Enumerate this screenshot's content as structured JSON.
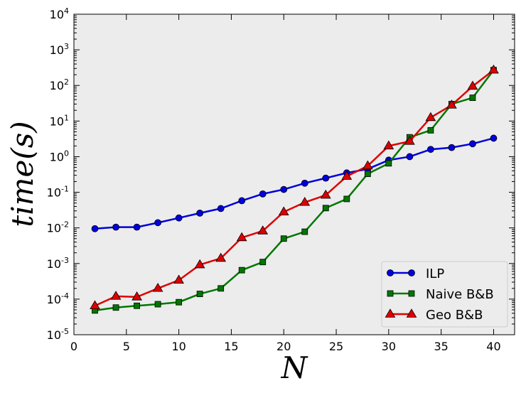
{
  "chart_data": {
    "type": "line",
    "title": "",
    "xlabel": "N",
    "ylabel": "time(s)",
    "xlim": [
      0,
      42
    ],
    "ylim_log10": [
      -5,
      4
    ],
    "yscale": "log",
    "grid": false,
    "legend_position": "lower-right",
    "x_ticks": [
      0,
      5,
      10,
      15,
      20,
      25,
      30,
      35,
      40
    ],
    "y_ticks": [
      {
        "base": "10",
        "exp": "-5"
      },
      {
        "base": "10",
        "exp": "-4"
      },
      {
        "base": "10",
        "exp": "-3"
      },
      {
        "base": "10",
        "exp": "-2"
      },
      {
        "base": "10",
        "exp": "-1"
      },
      {
        "base": "10",
        "exp": "0"
      },
      {
        "base": "10",
        "exp": "1"
      },
      {
        "base": "10",
        "exp": "2"
      },
      {
        "base": "10",
        "exp": "3"
      },
      {
        "base": "10",
        "exp": "4"
      }
    ],
    "x": [
      2,
      4,
      6,
      8,
      10,
      12,
      14,
      16,
      18,
      20,
      22,
      24,
      26,
      28,
      30,
      32,
      34,
      36,
      38,
      40
    ],
    "series": [
      {
        "name": "ILP",
        "color": "#0000dd",
        "marker": "circle",
        "values": [
          0.0095,
          0.0105,
          0.0105,
          0.014,
          0.019,
          0.026,
          0.035,
          0.058,
          0.09,
          0.12,
          0.18,
          0.25,
          0.35,
          0.45,
          0.8,
          1.0,
          1.6,
          1.8,
          2.3,
          3.3
        ]
      },
      {
        "name": "Naive B&B",
        "color": "#007700",
        "marker": "square",
        "values": [
          4.8e-05,
          5.8e-05,
          6.5e-05,
          7.2e-05,
          8.2e-05,
          0.00014,
          0.0002,
          0.00065,
          0.0011,
          0.005,
          0.0078,
          0.036,
          0.065,
          0.33,
          0.65,
          3.5,
          5.5,
          30,
          45,
          270
        ]
      },
      {
        "name": "Geo B&B",
        "color": "#dd0000",
        "marker": "triangle",
        "values": [
          6.5e-05,
          0.00012,
          0.000115,
          0.0002,
          0.00034,
          0.00092,
          0.0014,
          0.0053,
          0.0082,
          0.028,
          0.052,
          0.083,
          0.28,
          0.55,
          2.0,
          2.7,
          12.5,
          28,
          95,
          270
        ]
      }
    ]
  }
}
